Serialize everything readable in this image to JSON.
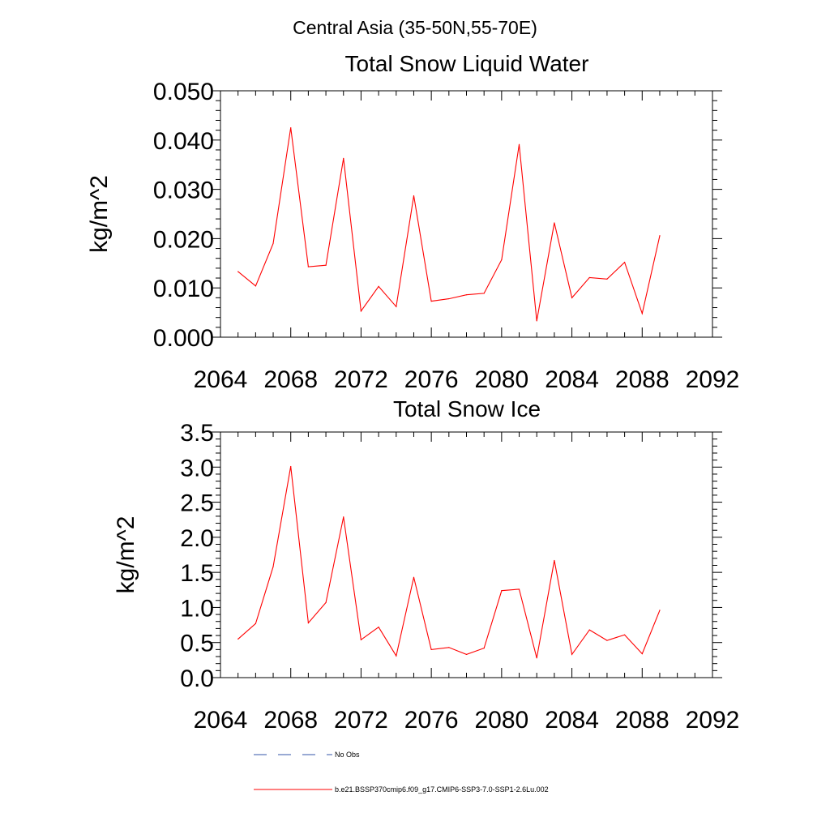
{
  "figure_title": "Central Asia (35-50N,55-70E)",
  "chart_data": [
    {
      "type": "line",
      "title": "Total Snow Liquid Water",
      "xlabel": "",
      "ylabel": "kg/m^2",
      "xlim": [
        2064,
        2092
      ],
      "ylim": [
        0,
        0.05
      ],
      "xticks": [
        "2064",
        "2068",
        "2072",
        "2076",
        "2080",
        "2084",
        "2088",
        "2092"
      ],
      "yticks": [
        "0.000",
        "0.010",
        "0.020",
        "0.030",
        "0.040",
        "0.050"
      ],
      "x": [
        2065,
        2066,
        2067,
        2068,
        2069,
        2070,
        2071,
        2072,
        2073,
        2074,
        2075,
        2076,
        2077,
        2078,
        2079,
        2080,
        2081,
        2082,
        2083,
        2084,
        2085,
        2086,
        2087,
        2088,
        2089
      ],
      "series": [
        {
          "name": "b.e21.BSSP370cmip6.f09_g17.CMIP6-SSP3-7.0-SSP1-2.6Lu.002",
          "color": "#ff0000",
          "values": [
            0.0133,
            0.0104,
            0.019,
            0.0425,
            0.0143,
            0.0146,
            0.0363,
            0.0053,
            0.0103,
            0.0062,
            0.0287,
            0.0073,
            0.0078,
            0.0086,
            0.0089,
            0.0157,
            0.0391,
            0.0033,
            0.0232,
            0.008,
            0.0121,
            0.0118,
            0.0152,
            0.0048,
            0.0206
          ]
        }
      ]
    },
    {
      "type": "line",
      "title": "Total Snow Ice",
      "xlabel": "",
      "ylabel": "kg/m^2",
      "xlim": [
        2064,
        2092
      ],
      "ylim": [
        0,
        3.5
      ],
      "xticks": [
        "2064",
        "2068",
        "2072",
        "2076",
        "2080",
        "2084",
        "2088",
        "2092"
      ],
      "yticks": [
        "0.0",
        "0.5",
        "1.0",
        "1.5",
        "2.0",
        "2.5",
        "3.0",
        "3.5"
      ],
      "x": [
        2065,
        2066,
        2067,
        2068,
        2069,
        2070,
        2071,
        2072,
        2073,
        2074,
        2075,
        2076,
        2077,
        2078,
        2079,
        2080,
        2081,
        2082,
        2083,
        2084,
        2085,
        2086,
        2087,
        2088,
        2089
      ],
      "series": [
        {
          "name": "b.e21.BSSP370cmip6.f09_g17.CMIP6-SSP3-7.0-SSP1-2.6Lu.002",
          "color": "#ff0000",
          "values": [
            0.55,
            0.77,
            1.58,
            3.01,
            0.78,
            1.07,
            2.29,
            0.54,
            0.72,
            0.31,
            1.43,
            0.4,
            0.43,
            0.33,
            0.42,
            1.24,
            1.26,
            0.28,
            1.67,
            0.33,
            0.68,
            0.53,
            0.61,
            0.34,
            0.96
          ]
        }
      ]
    }
  ],
  "legend": {
    "placement": "bottom-center",
    "items": [
      {
        "label": "No Obs",
        "color": "#3355aa",
        "style": "dashed"
      },
      {
        "label": "b.e21.BSSP370cmip6.f09_g17.CMIP6-SSP3-7.0-SSP1-2.6Lu.002",
        "color": "#ff0000",
        "style": "solid"
      }
    ]
  }
}
